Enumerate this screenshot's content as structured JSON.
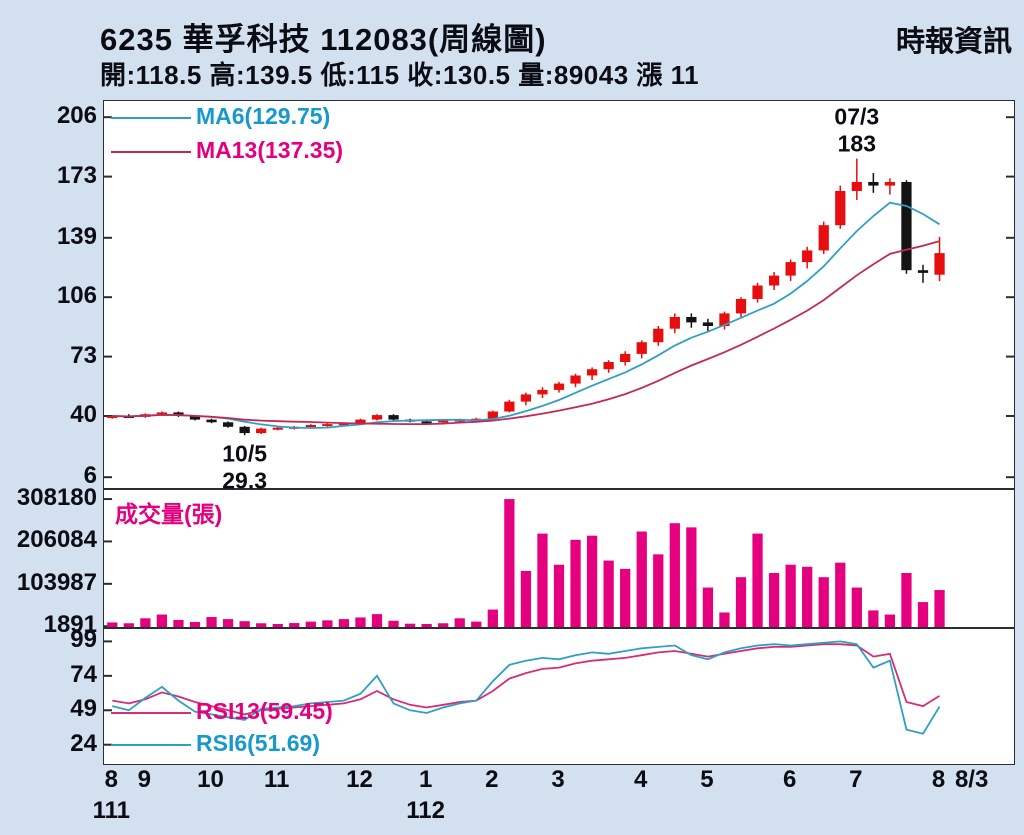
{
  "header": {
    "title": "6235  華孚科技 112083(周線圖)",
    "source": "時報資訊",
    "quote": "開:118.5 高:139.5 低:115 收:130.5 量:89043 漲 11",
    "quote_fields": {
      "open": 118.5,
      "high": 139.5,
      "low": 115,
      "close": 130.5,
      "volume": 89043,
      "change_label": "漲",
      "change": 11
    }
  },
  "colors": {
    "background": "#d2e0ef",
    "panel_bg": "#ffffff",
    "panel_border": "#2a2d33",
    "up": "#e60e0e",
    "down": "#141414",
    "text": "#0c0c14"
  },
  "chart_data": [
    {
      "id": "price",
      "type": "candlestick",
      "ylim": [
        0,
        215
      ],
      "yticks": [
        206,
        173,
        139,
        106,
        73,
        40,
        6
      ],
      "candles": [
        [
          39.5,
          40.5,
          38.5,
          40
        ],
        [
          40,
          41,
          39,
          39.5
        ],
        [
          39.5,
          41.5,
          39,
          41
        ],
        [
          41,
          42.5,
          40,
          42
        ],
        [
          42,
          42.5,
          39.5,
          40
        ],
        [
          40,
          40.5,
          37.5,
          38
        ],
        [
          38,
          38.5,
          36,
          36.5
        ],
        [
          36.5,
          37,
          33.5,
          34
        ],
        [
          34,
          34.5,
          29.3,
          30.5
        ],
        [
          30.5,
          33.5,
          30,
          33
        ],
        [
          33,
          34,
          32,
          33.5
        ],
        [
          33.5,
          34.5,
          32.5,
          34
        ],
        [
          34,
          35.5,
          33.5,
          35
        ],
        [
          35,
          36,
          34,
          35.5
        ],
        [
          35.5,
          36.5,
          34.5,
          36
        ],
        [
          36,
          38.5,
          35.5,
          38
        ],
        [
          38,
          41,
          37.5,
          40.5
        ],
        [
          40.5,
          41,
          37.5,
          38
        ],
        [
          38,
          38.5,
          36.5,
          37
        ],
        [
          37,
          37.5,
          35.5,
          36.5
        ],
        [
          36.5,
          38,
          36,
          37.5
        ],
        [
          37.5,
          38.5,
          36.5,
          38
        ],
        [
          38,
          39,
          37,
          38.5
        ],
        [
          38.5,
          43,
          38,
          42.5
        ],
        [
          42.5,
          49,
          42,
          48
        ],
        [
          48,
          53,
          46,
          52
        ],
        [
          52,
          56,
          50,
          54.5
        ],
        [
          54.5,
          59,
          53,
          58
        ],
        [
          58,
          63.5,
          56,
          62.5
        ],
        [
          62.5,
          67,
          60,
          66
        ],
        [
          66,
          71,
          64,
          70
        ],
        [
          70,
          76,
          68,
          74.5
        ],
        [
          74.5,
          82,
          72,
          81
        ],
        [
          81,
          90,
          79,
          88.5
        ],
        [
          88.5,
          97,
          86,
          95
        ],
        [
          95,
          97,
          89,
          92
        ],
        [
          92,
          94,
          87,
          90
        ],
        [
          90,
          98,
          88,
          97
        ],
        [
          97,
          106,
          95,
          105
        ],
        [
          105,
          114,
          103,
          112.5
        ],
        [
          112.5,
          120,
          110,
          118
        ],
        [
          118,
          127,
          115,
          125.5
        ],
        [
          125.5,
          134,
          122,
          132
        ],
        [
          132,
          148,
          130,
          146
        ],
        [
          146,
          168,
          144,
          165
        ],
        [
          165,
          183,
          160,
          170
        ],
        [
          170,
          175,
          164,
          168
        ],
        [
          168,
          172,
          163,
          170
        ],
        [
          170,
          171,
          119,
          121
        ],
        [
          121,
          124,
          114,
          119.5
        ],
        [
          118.5,
          139.5,
          115,
          130.5
        ]
      ],
      "ma_lines": [
        {
          "name": "MA6",
          "window": 6,
          "label": "MA6(129.75)",
          "value": 129.75,
          "color": "#2f9fc6",
          "label_color": "#1899cc"
        },
        {
          "name": "MA13",
          "window": 13,
          "label": "MA13(137.35)",
          "value": 137.35,
          "color": "#c22a55",
          "label_color": "#e4007f"
        }
      ],
      "annotations": [
        {
          "index": 45,
          "date": "07/3",
          "value": "183",
          "position": "above"
        },
        {
          "index": 8,
          "date": "10/5",
          "value": "29.3",
          "position": "below"
        }
      ]
    },
    {
      "id": "volume",
      "type": "bar",
      "label": "成交量(張)",
      "color": "#e4007f",
      "ylim": [
        0,
        330000
      ],
      "yticks": [
        308180,
        206084,
        103987,
        1891
      ],
      "current": 89043,
      "values": [
        11000,
        9000,
        21000,
        30000,
        17000,
        12000,
        24000,
        19000,
        14000,
        9000,
        7000,
        9500,
        13000,
        16000,
        19000,
        23000,
        31000,
        15000,
        8000,
        6000,
        9000,
        21000,
        13000,
        42000,
        308180,
        135000,
        225000,
        150000,
        210000,
        220000,
        160000,
        140000,
        230000,
        175000,
        250000,
        240000,
        95000,
        35000,
        120000,
        225000,
        130000,
        150000,
        145000,
        120000,
        155000,
        95000,
        40000,
        30000,
        130000,
        60000,
        89043
      ]
    },
    {
      "id": "rsi",
      "type": "line",
      "ylim": [
        10,
        108
      ],
      "yticks": [
        99,
        74,
        49,
        24
      ],
      "series": [
        {
          "name": "RSI13",
          "label": "RSI13(59.45)",
          "value": 59.45,
          "color": "#d62d74",
          "label_color": "#e4007f",
          "values": [
            56,
            54,
            57,
            62,
            59,
            55,
            52,
            49,
            46,
            49,
            50,
            51,
            52,
            53,
            54,
            57,
            63,
            57,
            53,
            51,
            53,
            55,
            56,
            63,
            72,
            76,
            79,
            80,
            83,
            85,
            86,
            87,
            89,
            91,
            92,
            90,
            88,
            90,
            92,
            94,
            95,
            95,
            96,
            97,
            97,
            96,
            88,
            90,
            55,
            52,
            59.45
          ]
        },
        {
          "name": "RSI6",
          "label": "RSI6(51.69)",
          "value": 51.69,
          "color": "#2f9fc6",
          "label_color": "#1899cc",
          "values": [
            52,
            49,
            58,
            66,
            56,
            48,
            46,
            44,
            42,
            50,
            51,
            52,
            54,
            55,
            56,
            61,
            74,
            54,
            49,
            47,
            51,
            54,
            56,
            70,
            82,
            85,
            87,
            86,
            89,
            91,
            90,
            92,
            94,
            95,
            96,
            89,
            86,
            91,
            94,
            96,
            97,
            96,
            97,
            98,
            99,
            97,
            80,
            85,
            35,
            32,
            51.69
          ]
        }
      ]
    }
  ],
  "xaxis": {
    "slots": 55,
    "month_labels": [
      {
        "label": "8",
        "index": 0
      },
      {
        "label": "9",
        "index": 2
      },
      {
        "label": "10",
        "index": 6
      },
      {
        "label": "11",
        "index": 10
      },
      {
        "label": "12",
        "index": 15
      },
      {
        "label": "1",
        "index": 19
      },
      {
        "label": "2",
        "index": 23
      },
      {
        "label": "3",
        "index": 27
      },
      {
        "label": "4",
        "index": 32
      },
      {
        "label": "5",
        "index": 36
      },
      {
        "label": "6",
        "index": 41
      },
      {
        "label": "7",
        "index": 45
      },
      {
        "label": "8",
        "index": 50
      },
      {
        "label": "8/3",
        "index": 52
      }
    ],
    "year_labels": [
      {
        "label": "111",
        "index": 0
      },
      {
        "label": "112",
        "index": 19
      }
    ]
  }
}
